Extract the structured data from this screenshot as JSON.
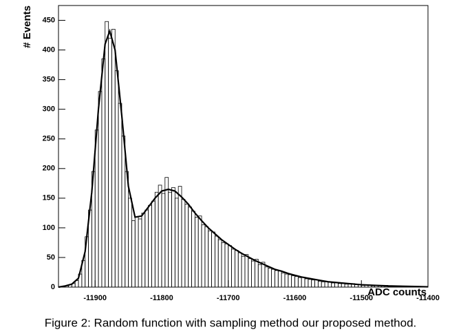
{
  "chart_data": {
    "type": "histogram",
    "y_label": "# Events",
    "x_label": "ADC counts",
    "caption": "Figure 2: Random function with sampling method our proposed method.",
    "color": "#000000",
    "xlim": [
      -11955,
      -11400
    ],
    "ylim": [
      0,
      475
    ],
    "xticks": [
      -11900,
      -11800,
      -11700,
      -11600,
      -11500,
      -11400
    ],
    "yticks": [
      0,
      50,
      100,
      150,
      200,
      250,
      300,
      350,
      400,
      450
    ],
    "bins": [
      -11955,
      -11950,
      -11945,
      -11940,
      -11935,
      -11930,
      -11925,
      -11920,
      -11915,
      -11910,
      -11905,
      -11900,
      -11895,
      -11890,
      -11885,
      -11880,
      -11875,
      -11870,
      -11865,
      -11860,
      -11855,
      -11850,
      -11845,
      -11840,
      -11835,
      -11830,
      -11825,
      -11820,
      -11815,
      -11810,
      -11805,
      -11800,
      -11795,
      -11790,
      -11785,
      -11780,
      -11775,
      -11770,
      -11765,
      -11760,
      -11755,
      -11750,
      -11745,
      -11740,
      -11735,
      -11730,
      -11725,
      -11720,
      -11715,
      -11710,
      -11705,
      -11700,
      -11695,
      -11690,
      -11685,
      -11680,
      -11675,
      -11670,
      -11665,
      -11660,
      -11655,
      -11650,
      -11645,
      -11640,
      -11635,
      -11630,
      -11625,
      -11620,
      -11615,
      -11610,
      -11605,
      -11600,
      -11595,
      -11590,
      -11585,
      -11580,
      -11575,
      -11570,
      -11565,
      -11560,
      -11555,
      -11550,
      -11545,
      -11540,
      -11535,
      -11530,
      -11525,
      -11520,
      -11515,
      -11510,
      -11505,
      -11500,
      -11495,
      -11490,
      -11485,
      -11480,
      -11475,
      -11470,
      -11465,
      -11460,
      -11455,
      -11450,
      -11445,
      -11440,
      -11435,
      -11430,
      -11425,
      -11420,
      -11415,
      -11410,
      -11405,
      -11400
    ],
    "values": [
      0,
      1,
      2,
      4,
      6,
      11,
      22,
      45,
      85,
      130,
      195,
      265,
      330,
      385,
      448,
      420,
      435,
      365,
      310,
      255,
      195,
      150,
      112,
      118,
      115,
      125,
      130,
      138,
      145,
      160,
      172,
      158,
      185,
      160,
      168,
      150,
      170,
      148,
      140,
      135,
      128,
      118,
      120,
      105,
      102,
      95,
      93,
      86,
      80,
      75,
      73,
      70,
      64,
      62,
      58,
      52,
      55,
      48,
      44,
      47,
      38,
      42,
      34,
      32,
      30,
      28,
      27,
      24,
      22,
      21,
      19,
      18,
      16,
      17,
      14,
      13,
      12,
      12,
      10,
      9,
      9,
      8,
      7,
      8,
      6,
      6,
      5,
      5,
      6,
      4,
      4,
      3,
      4,
      3,
      2,
      3,
      2,
      2,
      3,
      1,
      2,
      1,
      2,
      1,
      1,
      0,
      1,
      1,
      0,
      1,
      0
    ],
    "fit": {
      "type": "line",
      "color": "#000000",
      "x": [
        -11955,
        -11945,
        -11935,
        -11925,
        -11915,
        -11905,
        -11895,
        -11885,
        -11878,
        -11870,
        -11860,
        -11850,
        -11840,
        -11830,
        -11820,
        -11810,
        -11800,
        -11790,
        -11780,
        -11770,
        -11760,
        -11750,
        -11740,
        -11730,
        -11720,
        -11710,
        -11700,
        -11690,
        -11680,
        -11670,
        -11660,
        -11650,
        -11640,
        -11630,
        -11620,
        -11610,
        -11600,
        -11590,
        -11580,
        -11570,
        -11560,
        -11550,
        -11540,
        -11530,
        -11520,
        -11510,
        -11500,
        -11480,
        -11460,
        -11440,
        -11420,
        -11400
      ],
      "values": [
        0,
        2,
        5,
        15,
        60,
        160,
        300,
        410,
        432,
        400,
        290,
        170,
        118,
        120,
        135,
        150,
        162,
        165,
        162,
        152,
        140,
        125,
        112,
        100,
        90,
        80,
        72,
        64,
        57,
        51,
        45,
        40,
        35,
        30,
        27,
        23,
        20,
        17,
        15,
        13,
        11,
        9,
        8,
        7,
        6,
        5,
        4,
        3,
        2,
        1.5,
        1,
        0.5
      ]
    }
  }
}
